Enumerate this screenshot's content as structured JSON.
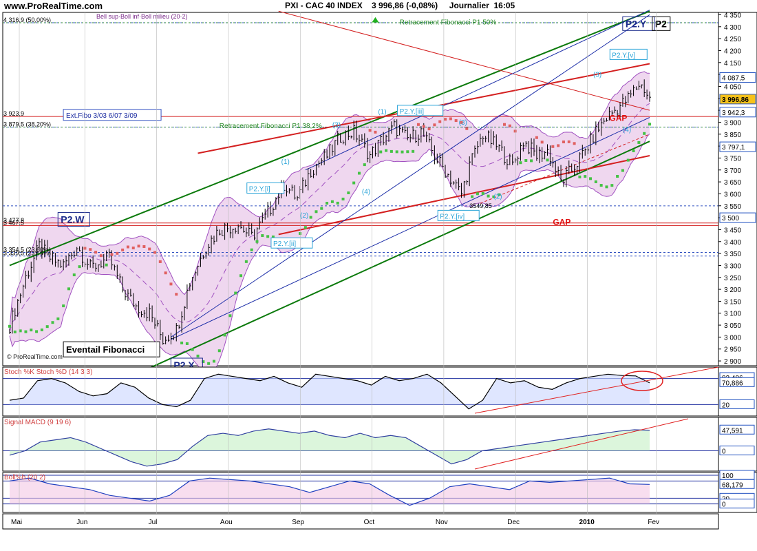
{
  "header": {
    "site": "www.ProRealTime.com",
    "instrument": "PXI - CAC 40 INDEX",
    "last": "3 996,86 (-0,08%)",
    "period": "Journalier",
    "time": "16:05"
  },
  "watermark": "© ProRealTime.com",
  "colors": {
    "bollinger_fill": "#efd7ef",
    "bollinger_line": "#a050c0",
    "sar_green": "#44c244",
    "sar_red": "#e06060",
    "fib_fan": "#0b7a0b",
    "channel_red": "#d42020",
    "channel_blue": "#1c2ea8",
    "label_cyan": "#2aa4d8"
  },
  "chart_data": [
    {
      "type": "candlestick",
      "title": "PXI - CAC 40 INDEX",
      "ylim": [
        2880,
        4360
      ],
      "y_ticks": [
        "4 350",
        "4 300",
        "4 250",
        "4 200",
        "4 150",
        "4 100",
        "4 050",
        "4 000",
        "3 950",
        "3 900",
        "3 850",
        "3 800",
        "3 750",
        "3 700",
        "3 650",
        "3 600",
        "3 550",
        "3 500",
        "3 450",
        "3 400",
        "3 350",
        "3 300",
        "3 250",
        "3 200",
        "3 150",
        "3 100",
        "3 050",
        "3 000",
        "2 950",
        "2 900"
      ],
      "x_labels": [
        "Mai",
        "Jun",
        "Jul",
        "Aou",
        "Sep",
        "Oct",
        "Nov",
        "Dec",
        "2010",
        "Fev"
      ],
      "price_path": [
        [
          0,
          3050
        ],
        [
          6,
          3250
        ],
        [
          11,
          3380
        ],
        [
          15,
          3330
        ],
        [
          20,
          3300
        ],
        [
          25,
          3380
        ],
        [
          30,
          3290
        ],
        [
          37,
          3330
        ],
        [
          42,
          3200
        ],
        [
          47,
          3130
        ],
        [
          52,
          3100
        ],
        [
          57,
          2990
        ],
        [
          62,
          3030
        ],
        [
          67,
          3230
        ],
        [
          73,
          3380
        ],
        [
          78,
          3450
        ],
        [
          85,
          3470
        ],
        [
          90,
          3420
        ],
        [
          95,
          3500
        ],
        [
          102,
          3640
        ],
        [
          107,
          3580
        ],
        [
          112,
          3700
        ],
        [
          118,
          3760
        ],
        [
          123,
          3840
        ],
        [
          128,
          3860
        ],
        [
          134,
          3760
        ],
        [
          138,
          3820
        ],
        [
          143,
          3880
        ],
        [
          148,
          3830
        ],
        [
          153,
          3860
        ],
        [
          158,
          3760
        ],
        [
          163,
          3680
        ],
        [
          168,
          3600
        ],
        [
          171,
          3720
        ],
        [
          176,
          3850
        ],
        [
          182,
          3790
        ],
        [
          187,
          3720
        ],
        [
          191,
          3820
        ],
        [
          196,
          3760
        ],
        [
          200,
          3780
        ],
        [
          205,
          3650
        ],
        [
          209,
          3700
        ],
        [
          214,
          3780
        ],
        [
          218,
          3860
        ],
        [
          222,
          3920
        ],
        [
          226,
          3960
        ],
        [
          230,
          4000
        ],
        [
          234,
          4060
        ],
        [
          236,
          4040
        ],
        [
          238,
          3997
        ]
      ],
      "bollinger_band": [],
      "label_values": [
        {
          "text": "4 087,5",
          "value": 4087.5
        },
        {
          "text": "3 996,86",
          "value": 3996.86
        },
        {
          "text": "3 942,3",
          "value": 3942.3
        },
        {
          "text": "3 797,1",
          "value": 3797.1
        },
        {
          "text": "3 500",
          "value": 3500
        }
      ],
      "level_lines": [
        {
          "text": "4 316,9 (50,00%)",
          "value": 4316.9
        },
        {
          "text": "3 923,9",
          "value": 3923.9
        },
        {
          "text": "3 879,5 (38,20%)",
          "value": 3879.5
        },
        {
          "text": "3 477,8",
          "value": 3477.8
        },
        {
          "text": "3 467,5",
          "value": 3467.5
        },
        {
          "text": "3 354,5 (23,60%)",
          "value": 3354.5
        },
        {
          "text": "3 339,5 (23,60%)",
          "value": 3339.5
        }
      ],
      "legend_top": "Bell sup·Boll inf·Boll milieu (20·2)",
      "annotations": [
        {
          "text": "P2.W",
          "x": 19,
          "y": 3490
        },
        {
          "text": "P2.X",
          "x": 61,
          "y": 2880
        },
        {
          "text": "P2.Y",
          "x": 229,
          "y": 4310
        },
        {
          "text": "P2",
          "x": 240,
          "y": 4310
        },
        {
          "text": "P2.Y.[i]",
          "x": 89,
          "y": 3620
        },
        {
          "text": "P2.Y.[ii]",
          "x": 98,
          "y": 3390
        },
        {
          "text": "P2.Y.[iii]",
          "x": 145,
          "y": 3945
        },
        {
          "text": "P2.Y.[iv]",
          "x": 160,
          "y": 3505
        },
        {
          "text": "P2.Y.[v]",
          "x": 224,
          "y": 4180
        },
        {
          "text": "(1)",
          "x": 101,
          "y": 3725
        },
        {
          "text": "(2)",
          "x": 108,
          "y": 3500
        },
        {
          "text": "(3)",
          "x": 120,
          "y": 3880
        },
        {
          "text": "(4)",
          "x": 131,
          "y": 3600
        },
        {
          "text": "(1)",
          "x": 137,
          "y": 3935
        },
        {
          "text": "(2)",
          "x": 180,
          "y": 3580
        },
        {
          "text": "(3)",
          "x": 217,
          "y": 4090
        },
        {
          "text": "(4)",
          "x": 228,
          "y": 3860
        },
        {
          "text": "(3)",
          "x": 167,
          "y": 3890
        },
        {
          "text": "GAP",
          "x": 223,
          "y": 3905
        },
        {
          "text": "GAP",
          "x": 202,
          "y": 3470
        },
        {
          "text": "3549,85",
          "x": 171,
          "y": 3540
        },
        {
          "text": "Ext.Fibo 3/03 6/07 3/09",
          "x": 21,
          "y": 3925
        },
        {
          "text": "Retracement Fibonacci P1 50%",
          "x": 145,
          "y": 4310
        },
        {
          "text": "Retracement Fibonacci P1 38,2%",
          "x": 78,
          "y": 3875
        },
        {
          "text": "Eventail Fibonacci",
          "x": 21,
          "y": 2940
        }
      ]
    },
    {
      "type": "line",
      "title": "Stoch %K Stoch %D (14 3 3)",
      "ylim": [
        0,
        100
      ],
      "value_labels": [
        "82,486",
        "70,886",
        "20"
      ],
      "series": [
        {
          "name": "Stoch %K",
          "values": [
            30,
            35,
            75,
            80,
            70,
            50,
            40,
            45,
            70,
            60,
            35,
            20,
            15,
            30,
            80,
            90,
            85,
            80,
            75,
            85,
            70,
            60,
            90,
            85,
            80,
            75,
            65,
            85,
            75,
            80,
            90,
            70,
            40,
            10,
            30,
            80,
            70,
            75,
            60,
            55,
            70,
            80,
            85,
            90,
            87,
            86,
            70
          ]
        }
      ]
    },
    {
      "type": "line",
      "title": "Signal MACD (9 19 6)",
      "ylim": [
        -40,
        70
      ],
      "value_labels": [
        "47,591",
        "0"
      ],
      "series": [
        {
          "name": "MACD",
          "values": [
            -10,
            0,
            20,
            25,
            30,
            20,
            5,
            -10,
            -25,
            -35,
            -30,
            -20,
            10,
            35,
            40,
            35,
            45,
            50,
            45,
            40,
            45,
            35,
            30,
            40,
            30,
            35,
            30,
            10,
            -10,
            -30,
            -20,
            0,
            5,
            10,
            15,
            20,
            25,
            30,
            35,
            40,
            45,
            48,
            47
          ]
        }
      ]
    },
    {
      "type": "line",
      "title": "Boll%b (20 2)",
      "ylim": [
        -20,
        100
      ],
      "value_labels": [
        "100",
        "68,179",
        "20",
        "0"
      ],
      "series": [
        {
          "name": "Boll%b",
          "values": [
            80,
            90,
            70,
            60,
            50,
            30,
            20,
            10,
            30,
            80,
            90,
            85,
            80,
            70,
            60,
            40,
            60,
            80,
            70,
            30,
            -5,
            20,
            60,
            70,
            60,
            50,
            80,
            75,
            80,
            85,
            90,
            70,
            68
          ]
        }
      ]
    }
  ]
}
